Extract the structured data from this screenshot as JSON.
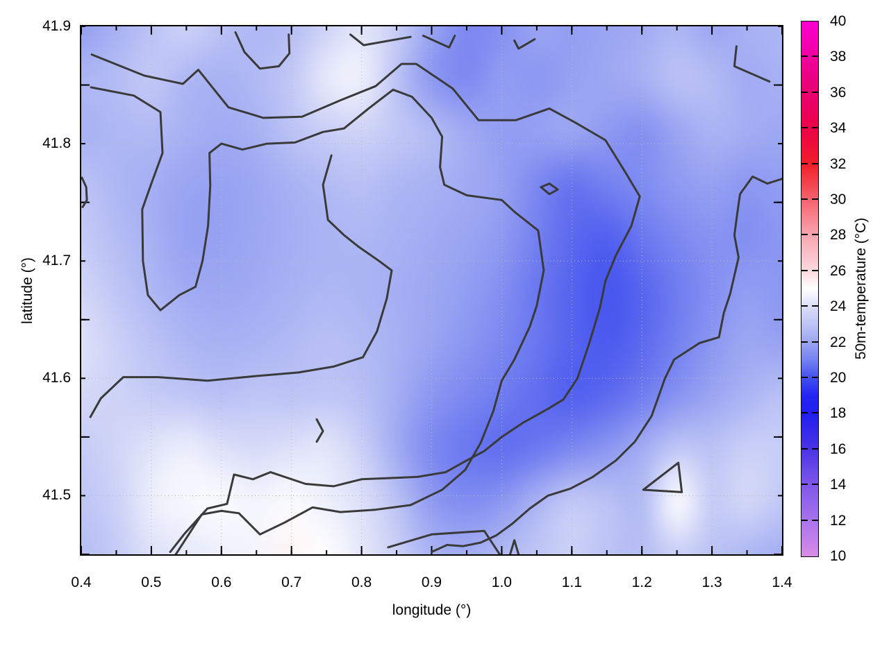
{
  "axes": {
    "x": {
      "label": "longitude (°)",
      "min": 0.4,
      "max": 1.4,
      "major_ticks": [
        0.4,
        0.5,
        0.6,
        0.7,
        0.8,
        0.9,
        1.0,
        1.1,
        1.2,
        1.3,
        1.4
      ],
      "tick_labels": [
        "0.4",
        "0.5",
        "0.6",
        "0.7",
        "0.8",
        "0.9",
        "1.0",
        "1.1",
        "1.2",
        "1.3",
        "1.4"
      ],
      "minor_tick_step": 0.05
    },
    "y": {
      "label": "latitude (°)",
      "min": 41.45,
      "max": 41.9,
      "major_ticks": [
        41.5,
        41.6,
        41.7,
        41.8,
        41.9
      ],
      "tick_labels": [
        "41.5",
        "41.6",
        "41.7",
        "41.8",
        "41.9"
      ],
      "minor_tick_step": 0.05
    },
    "grid": "dotted"
  },
  "colorbar": {
    "label": "50m-temperature (°C)",
    "min": 10,
    "max": 40,
    "tick_values": [
      10,
      12,
      14,
      16,
      18,
      20,
      22,
      24,
      26,
      28,
      30,
      32,
      34,
      36,
      38,
      40
    ],
    "tick_labels": [
      "10",
      "12",
      "14",
      "16",
      "18",
      "20",
      "22",
      "24",
      "26",
      "28",
      "30",
      "32",
      "34",
      "36",
      "38",
      "40"
    ],
    "palette_stops": [
      {
        "t": 10,
        "color": "#d98be8"
      },
      {
        "t": 12,
        "color": "#a873ec"
      },
      {
        "t": 14,
        "color": "#7e58ea"
      },
      {
        "t": 16,
        "color": "#4c34e6"
      },
      {
        "t": 18,
        "color": "#1f1ff0"
      },
      {
        "t": 19,
        "color": "#2323f2"
      },
      {
        "t": 20,
        "color": "#4150ee"
      },
      {
        "t": 21,
        "color": "#7481f0"
      },
      {
        "t": 22,
        "color": "#9aa5f2"
      },
      {
        "t": 23,
        "color": "#bcc3f5"
      },
      {
        "t": 24,
        "color": "#dadef8"
      },
      {
        "t": 25,
        "color": "#ffffff"
      },
      {
        "t": 26,
        "color": "#fbdade"
      },
      {
        "t": 28,
        "color": "#f8a6b0"
      },
      {
        "t": 30,
        "color": "#f4636e"
      },
      {
        "t": 32,
        "color": "#f01f28"
      },
      {
        "t": 34,
        "color": "#ec0048"
      },
      {
        "t": 36,
        "color": "#e80070"
      },
      {
        "t": 38,
        "color": "#f000a0"
      },
      {
        "t": 40,
        "color": "#fb00d0"
      }
    ]
  },
  "chart_data": {
    "type": "heatmap",
    "title": "",
    "xlabel": "longitude (°)",
    "ylabel": "latitude (°)",
    "value_label": "50m-temperature (°C)",
    "x_range": [
      0.4,
      1.4
    ],
    "y_range": [
      41.45,
      41.9
    ],
    "value_range_shown": [
      10,
      40
    ],
    "x": [
      0.4,
      0.45,
      0.5,
      0.55,
      0.6,
      0.65,
      0.7,
      0.75,
      0.8,
      0.85,
      0.9,
      0.95,
      1.0,
      1.05,
      1.1,
      1.15,
      1.2,
      1.25,
      1.3,
      1.35,
      1.4
    ],
    "y_top_to_bottom": [
      41.9,
      41.855,
      41.81,
      41.765,
      41.72,
      41.675,
      41.63,
      41.585,
      41.54,
      41.495,
      41.45
    ],
    "grid_temperature_c": [
      [
        21.8,
        22.4,
        23.0,
        23.6,
        23.0,
        22.6,
        22.8,
        23.6,
        24.2,
        23.4,
        22.0,
        21.2,
        21.4,
        22.0,
        21.8,
        22.0,
        22.2,
        22.6,
        22.0,
        22.4,
        22.6
      ],
      [
        22.6,
        22.8,
        23.2,
        22.6,
        22.4,
        22.7,
        23.2,
        24.4,
        24.6,
        23.0,
        21.6,
        21.2,
        21.8,
        21.6,
        21.9,
        22.1,
        22.4,
        23.0,
        22.8,
        22.2,
        22.4
      ],
      [
        22.4,
        22.6,
        22.7,
        22.4,
        22.2,
        22.4,
        23.0,
        23.4,
        23.6,
        23.2,
        22.8,
        22.2,
        21.8,
        21.9,
        22.1,
        21.7,
        21.4,
        22.0,
        22.5,
        22.3,
        22.1
      ],
      [
        23.0,
        22.6,
        22.3,
        22.0,
        21.9,
        22.1,
        22.4,
        22.7,
        22.9,
        22.6,
        22.4,
        22.2,
        21.9,
        21.2,
        20.7,
        21.0,
        21.3,
        21.7,
        21.9,
        21.6,
        21.8
      ],
      [
        23.3,
        22.8,
        22.4,
        21.9,
        21.9,
        22.1,
        22.3,
        22.5,
        22.6,
        22.4,
        22.2,
        22.0,
        21.7,
        21.0,
        20.5,
        20.3,
        20.8,
        21.2,
        21.5,
        21.4,
        21.6
      ],
      [
        23.7,
        23.1,
        22.6,
        22.2,
        22.1,
        22.2,
        22.4,
        22.6,
        22.5,
        22.3,
        22.1,
        21.8,
        21.4,
        20.8,
        20.4,
        20.1,
        20.4,
        20.9,
        21.4,
        21.8,
        21.6
      ],
      [
        24.1,
        23.5,
        23.0,
        22.6,
        22.4,
        22.5,
        22.7,
        22.9,
        22.7,
        22.4,
        22.0,
        21.6,
        21.2,
        20.8,
        20.4,
        20.2,
        20.5,
        21.0,
        21.6,
        22.1,
        21.9
      ],
      [
        23.8,
        23.6,
        23.3,
        23.1,
        22.9,
        23.1,
        23.0,
        23.1,
        22.9,
        22.3,
        21.6,
        21.2,
        20.9,
        20.6,
        20.3,
        20.5,
        20.9,
        21.5,
        22.0,
        22.5,
        23.0
      ],
      [
        23.3,
        23.7,
        24.2,
        24.5,
        24.1,
        23.9,
        24.1,
        24.3,
        23.5,
        22.2,
        21.2,
        20.8,
        20.6,
        20.8,
        21.2,
        21.6,
        22.3,
        23.2,
        23.0,
        23.5,
        23.4
      ],
      [
        23.1,
        23.5,
        24.5,
        24.8,
        24.9,
        24.7,
        24.9,
        24.5,
        24.1,
        23.0,
        21.7,
        21.3,
        21.6,
        22.5,
        23.3,
        23.0,
        22.7,
        25.0,
        23.3,
        23.8,
        23.2
      ],
      [
        22.8,
        23.3,
        24.1,
        24.3,
        24.5,
        24.7,
        25.3,
        25.0,
        24.3,
        23.5,
        22.5,
        22.3,
        22.7,
        23.1,
        23.5,
        23.0,
        22.8,
        23.4,
        23.0,
        22.6,
        22.3
      ]
    ],
    "contour_levels_c": [
      21,
      22,
      23
    ],
    "contour_color": "#3a3a3a",
    "contours": [
      [
        [
          0.415,
          41.876
        ],
        [
          0.49,
          41.858
        ],
        [
          0.545,
          41.851
        ],
        [
          0.567,
          41.863
        ],
        [
          0.61,
          41.831
        ],
        [
          0.66,
          41.822
        ],
        [
          0.715,
          41.823
        ],
        [
          0.77,
          41.837
        ],
        [
          0.82,
          41.849
        ],
        [
          0.857,
          41.868
        ],
        [
          0.878,
          41.868
        ],
        [
          0.93,
          41.847
        ],
        [
          0.967,
          41.82
        ],
        [
          1.02,
          41.82
        ],
        [
          1.068,
          41.83
        ],
        [
          1.105,
          41.818
        ],
        [
          1.148,
          41.803
        ],
        [
          1.175,
          41.777
        ],
        [
          1.197,
          41.755
        ],
        [
          1.185,
          41.73
        ],
        [
          1.163,
          41.705
        ],
        [
          1.148,
          41.683
        ],
        [
          1.14,
          41.66
        ],
        [
          1.125,
          41.63
        ],
        [
          1.108,
          41.6
        ],
        [
          1.088,
          41.582
        ],
        [
          1.066,
          41.574
        ],
        [
          1.03,
          41.562
        ],
        [
          1.0,
          41.55
        ],
        [
          0.975,
          41.538
        ],
        [
          0.95,
          41.53
        ],
        [
          0.92,
          41.52
        ],
        [
          0.88,
          41.516
        ],
        [
          0.84,
          41.515
        ],
        [
          0.8,
          41.514
        ],
        [
          0.76,
          41.508
        ],
        [
          0.72,
          41.51
        ],
        [
          0.67,
          41.52
        ],
        [
          0.645,
          41.514
        ],
        [
          0.618,
          41.518
        ],
        [
          0.608,
          41.493
        ],
        [
          0.58,
          41.489
        ],
        [
          0.548,
          41.468
        ],
        [
          0.527,
          41.452
        ]
      ],
      [
        [
          0.414,
          41.848
        ],
        [
          0.475,
          41.841
        ],
        [
          0.513,
          41.827
        ],
        [
          0.516,
          41.792
        ],
        [
          0.5,
          41.766
        ],
        [
          0.487,
          41.744
        ],
        [
          0.488,
          41.7
        ],
        [
          0.495,
          41.671
        ],
        [
          0.513,
          41.658
        ],
        [
          0.54,
          41.671
        ],
        [
          0.563,
          41.678
        ],
        [
          0.573,
          41.7
        ],
        [
          0.581,
          41.73
        ],
        [
          0.584,
          41.764
        ],
        [
          0.583,
          41.792
        ],
        [
          0.6,
          41.8
        ],
        [
          0.63,
          41.795
        ],
        [
          0.665,
          41.8
        ],
        [
          0.705,
          41.801
        ],
        [
          0.745,
          41.81
        ],
        [
          0.775,
          41.813
        ],
        [
          0.81,
          41.83
        ],
        [
          0.845,
          41.846
        ],
        [
          0.872,
          41.84
        ],
        [
          0.9,
          41.822
        ],
        [
          0.915,
          41.806
        ],
        [
          0.912,
          41.78
        ],
        [
          0.918,
          41.765
        ],
        [
          0.95,
          41.756
        ],
        [
          1.0,
          41.752
        ],
        [
          1.018,
          41.742
        ],
        [
          1.052,
          41.726
        ],
        [
          1.06,
          41.692
        ],
        [
          1.05,
          41.662
        ],
        [
          1.04,
          41.644
        ],
        [
          1.018,
          41.616
        ],
        [
          1.0,
          41.598
        ],
        [
          0.988,
          41.572
        ],
        [
          0.97,
          41.545
        ],
        [
          0.948,
          41.522
        ],
        [
          0.915,
          41.505
        ],
        [
          0.87,
          41.492
        ],
        [
          0.82,
          41.488
        ],
        [
          0.77,
          41.486
        ],
        [
          0.73,
          41.49
        ],
        [
          0.69,
          41.477
        ],
        [
          0.655,
          41.467
        ],
        [
          0.625,
          41.485
        ],
        [
          0.6,
          41.487
        ],
        [
          0.572,
          41.484
        ],
        [
          0.548,
          41.462
        ],
        [
          0.535,
          41.45
        ]
      ],
      [
        [
          0.757,
          41.79
        ],
        [
          0.745,
          41.765
        ],
        [
          0.752,
          41.735
        ],
        [
          0.775,
          41.722
        ],
        [
          0.796,
          41.712
        ],
        [
          0.825,
          41.7
        ],
        [
          0.843,
          41.692
        ],
        [
          0.836,
          41.668
        ],
        [
          0.822,
          41.64
        ],
        [
          0.802,
          41.618
        ],
        [
          0.76,
          41.61
        ],
        [
          0.71,
          41.605
        ],
        [
          0.65,
          41.602
        ],
        [
          0.58,
          41.598
        ],
        [
          0.51,
          41.601
        ],
        [
          0.46,
          41.601
        ],
        [
          0.428,
          41.583
        ],
        [
          0.413,
          41.567
        ]
      ],
      [
        [
          1.4,
          41.77
        ],
        [
          1.379,
          41.766
        ],
        [
          1.358,
          41.772
        ],
        [
          1.34,
          41.757
        ],
        [
          1.336,
          41.74
        ],
        [
          1.332,
          41.722
        ],
        [
          1.338,
          41.703
        ],
        [
          1.326,
          41.672
        ],
        [
          1.317,
          41.656
        ],
        [
          1.31,
          41.635
        ],
        [
          1.282,
          41.63
        ],
        [
          1.246,
          41.616
        ],
        [
          1.233,
          41.6
        ],
        [
          1.214,
          41.568
        ],
        [
          1.19,
          41.546
        ],
        [
          1.163,
          41.53
        ],
        [
          1.13,
          41.516
        ],
        [
          1.098,
          41.506
        ],
        [
          1.066,
          41.5
        ],
        [
          1.04,
          41.489
        ],
        [
          1.015,
          41.476
        ],
        [
          0.992,
          41.466
        ],
        [
          0.97,
          41.46
        ],
        [
          0.945,
          41.457
        ],
        [
          0.922,
          41.458
        ],
        [
          0.9,
          41.452
        ]
      ],
      [
        [
          1.335,
          41.883
        ],
        [
          1.332,
          41.866
        ],
        [
          1.382,
          41.853
        ]
      ],
      [
        [
          0.62,
          41.895
        ],
        [
          0.633,
          41.878
        ],
        [
          0.655,
          41.864
        ],
        [
          0.682,
          41.866
        ],
        [
          0.697,
          41.877
        ],
        [
          0.696,
          41.893
        ]
      ],
      [
        [
          0.784,
          41.893
        ],
        [
          0.803,
          41.884
        ],
        [
          0.87,
          41.891
        ]
      ],
      [
        [
          0.888,
          41.892
        ],
        [
          0.925,
          41.882
        ],
        [
          0.933,
          41.892
        ]
      ],
      [
        [
          1.018,
          41.888
        ],
        [
          1.024,
          41.881
        ],
        [
          1.047,
          41.889
        ]
      ],
      [
        [
          1.056,
          41.763
        ],
        [
          1.068,
          41.757
        ],
        [
          1.08,
          41.761
        ],
        [
          1.068,
          41.766
        ],
        [
          1.056,
          41.763
        ]
      ],
      [
        [
          1.202,
          41.505
        ],
        [
          1.252,
          41.528
        ],
        [
          1.257,
          41.503
        ],
        [
          1.202,
          41.505
        ]
      ],
      [
        [
          0.401,
          41.771
        ],
        [
          0.407,
          41.763
        ],
        [
          0.408,
          41.752
        ],
        [
          0.402,
          41.746
        ]
      ],
      [
        [
          0.838,
          41.456
        ],
        [
          0.9,
          41.467
        ],
        [
          0.975,
          41.47
        ],
        [
          0.997,
          41.45
        ]
      ],
      [
        [
          0.736,
          41.565
        ],
        [
          0.745,
          41.555
        ],
        [
          0.736,
          41.546
        ]
      ],
      [
        [
          1.012,
          41.45
        ],
        [
          1.018,
          41.462
        ],
        [
          1.024,
          41.45
        ]
      ]
    ]
  }
}
